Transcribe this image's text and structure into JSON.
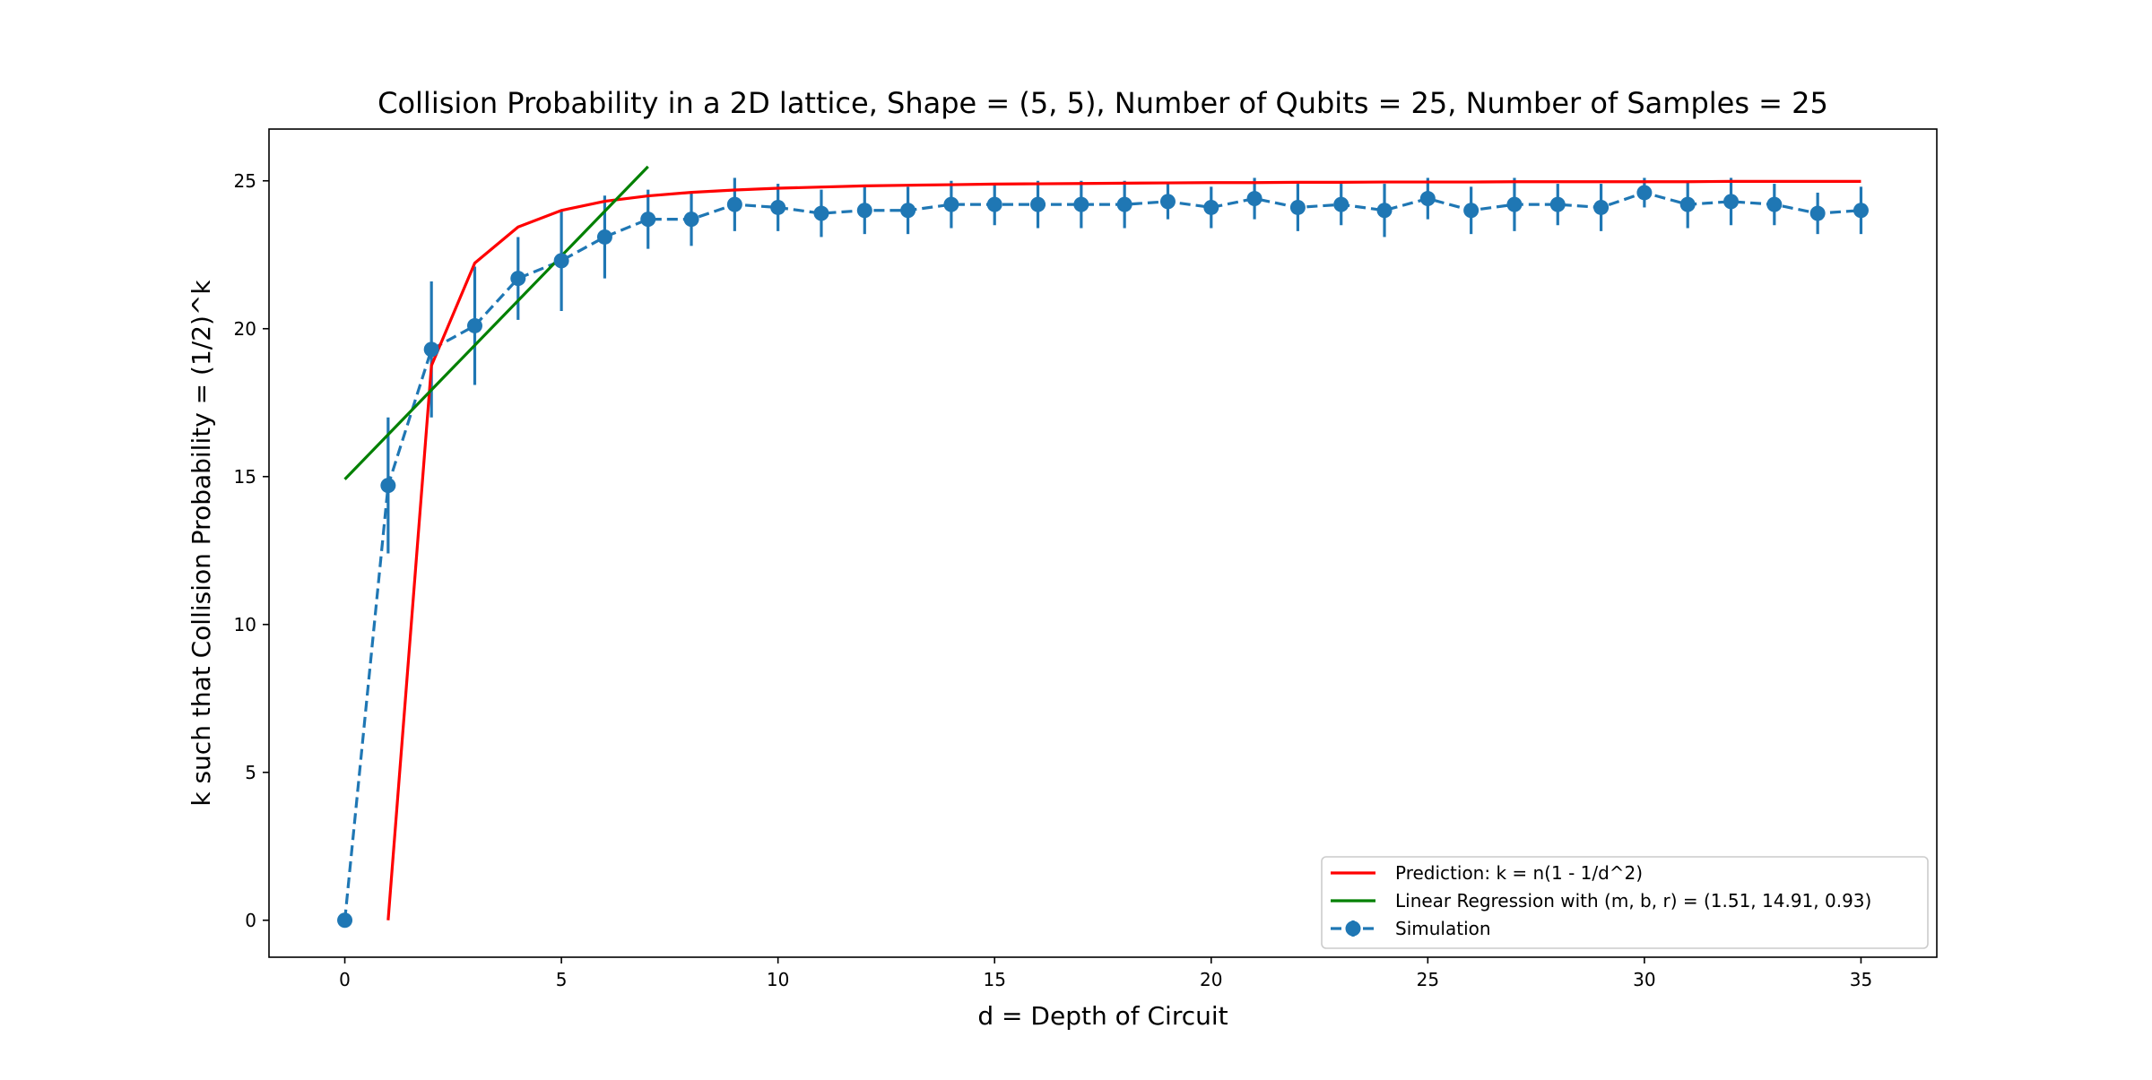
{
  "chart_data": {
    "type": "line",
    "title": "Collision Probability in a 2D lattice, Shape = (5, 5), Number of Qubits = 25, Number of Samples = 25",
    "xlabel": "d = Depth of Circuit",
    "ylabel": "k such that Collision Probability = (1/2)^k",
    "xlim": [
      -1.75,
      36.75
    ],
    "ylim": [
      -1.25,
      26.75
    ],
    "xticks": [
      0,
      5,
      10,
      15,
      20,
      25,
      30,
      35
    ],
    "yticks": [
      0,
      5,
      10,
      15,
      20,
      25
    ],
    "grid": false,
    "legend_position": "lower-right",
    "series": [
      {
        "name": "Prediction: k = n(1 - 1/d^2)",
        "style": "solid",
        "color": "#ff0000",
        "x": [
          1,
          2,
          3,
          4,
          5,
          6,
          7,
          8,
          9,
          10,
          11,
          12,
          13,
          14,
          15,
          16,
          17,
          18,
          19,
          20,
          21,
          22,
          23,
          24,
          25,
          26,
          27,
          28,
          29,
          30,
          31,
          32,
          33,
          34,
          35
        ],
        "y": [
          0.0,
          18.75,
          22.22,
          23.44,
          24.0,
          24.31,
          24.49,
          24.61,
          24.69,
          24.75,
          24.79,
          24.83,
          24.85,
          24.87,
          24.89,
          24.9,
          24.91,
          24.92,
          24.93,
          24.94,
          24.94,
          24.95,
          24.95,
          24.96,
          24.96,
          24.96,
          24.97,
          24.97,
          24.97,
          24.97,
          24.97,
          24.98,
          24.98,
          24.98,
          24.98
        ]
      },
      {
        "name": "Linear Regression with (m, b, r) = (1.51, 14.91, 0.93)",
        "style": "solid",
        "color": "#008000",
        "x": [
          0,
          7
        ],
        "y": [
          14.91,
          25.48
        ]
      },
      {
        "name": "Simulation",
        "style": "dashed-markers-errorbars",
        "color": "#1f77b4",
        "x": [
          0,
          1,
          2,
          3,
          4,
          5,
          6,
          7,
          8,
          9,
          10,
          11,
          12,
          13,
          14,
          15,
          16,
          17,
          18,
          19,
          20,
          21,
          22,
          23,
          24,
          25,
          26,
          27,
          28,
          29,
          30,
          31,
          32,
          33,
          34,
          35
        ],
        "y": [
          0.0,
          14.7,
          19.3,
          20.1,
          21.7,
          22.3,
          23.1,
          23.7,
          23.7,
          24.2,
          24.1,
          23.9,
          24.0,
          24.0,
          24.2,
          24.2,
          24.2,
          24.2,
          24.2,
          24.3,
          24.1,
          24.4,
          24.1,
          24.2,
          24.0,
          24.4,
          24.0,
          24.2,
          24.2,
          24.1,
          24.6,
          24.2,
          24.3,
          24.2,
          23.9,
          24.0
        ],
        "err": [
          0.0,
          2.3,
          2.3,
          2.0,
          1.4,
          1.7,
          1.4,
          1.0,
          0.9,
          0.9,
          0.8,
          0.8,
          0.8,
          0.8,
          0.8,
          0.7,
          0.8,
          0.8,
          0.8,
          0.6,
          0.7,
          0.7,
          0.8,
          0.7,
          0.9,
          0.7,
          0.8,
          0.9,
          0.7,
          0.8,
          0.5,
          0.8,
          0.8,
          0.7,
          0.7,
          0.8
        ]
      }
    ]
  }
}
